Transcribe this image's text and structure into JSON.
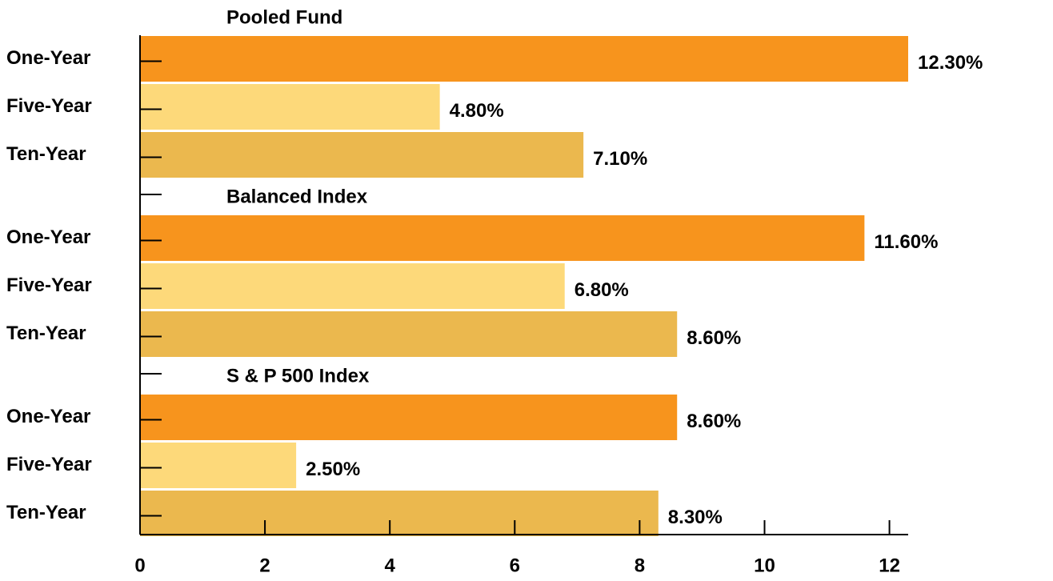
{
  "chart_data": {
    "type": "bar",
    "orientation": "horizontal",
    "categories": [
      "One-Year",
      "Five-Year",
      "Ten-Year"
    ],
    "colors": [
      "#f7941d",
      "#fdd97a",
      "#ebb84e"
    ],
    "groups": [
      {
        "name": "Pooled Fund",
        "values": [
          12.3,
          4.8,
          7.1
        ],
        "value_labels": [
          "12.30%",
          "4.80%",
          "7.10%"
        ]
      },
      {
        "name": "Balanced Index",
        "values": [
          11.6,
          6.8,
          8.6
        ],
        "value_labels": [
          "11.60%",
          "6.80%",
          "8.60%"
        ]
      },
      {
        "name": "S & P 500 Index",
        "values": [
          8.6,
          2.5,
          8.3
        ],
        "value_labels": [
          "8.60%",
          "2.50%",
          "8.30%"
        ]
      }
    ],
    "xlim": [
      0,
      12.3
    ],
    "xticks": [
      0,
      2,
      4,
      6,
      8,
      10,
      12
    ]
  }
}
